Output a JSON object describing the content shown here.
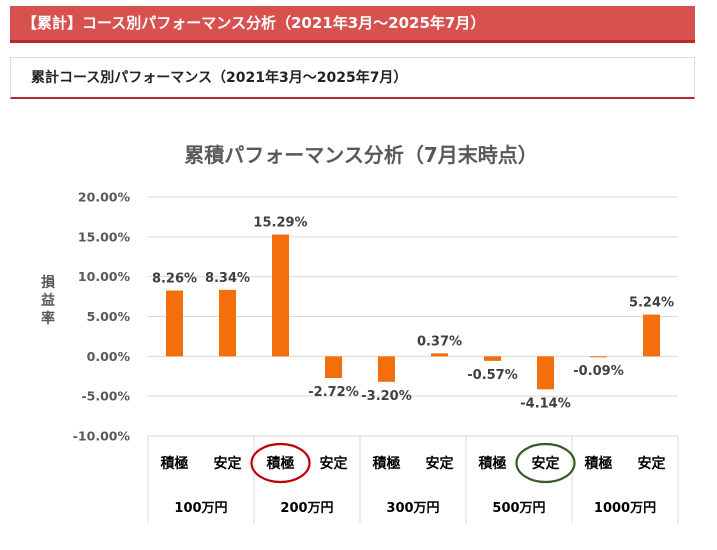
{
  "header": {
    "banner_title": "【累計】コース別パフォーマンス分析（2021年3月～2025年7月）",
    "subtitle": "累計コース別パフォーマンス（2021年3月～2025年7月）"
  },
  "chart_data": {
    "type": "bar",
    "title": "累積パフォーマンス分析（7月末時点）",
    "ylabel": "損益率",
    "xlabel": "",
    "ylim": [
      -10,
      20
    ],
    "yticks": [
      20,
      15,
      10,
      5,
      0,
      -5,
      -10
    ],
    "ytick_labels": [
      "20.00%",
      "15.00%",
      "10.00%",
      "5.00%",
      "0.00%",
      "-5.00%",
      "-10.00%"
    ],
    "grid": true,
    "bar_color": "#f26f0c",
    "categories": [
      "積極",
      "安定",
      "積極",
      "安定",
      "積極",
      "安定",
      "積極",
      "安定",
      "積極",
      "安定"
    ],
    "groups": [
      "100万円",
      "200万円",
      "300万円",
      "500万円",
      "1000万円"
    ],
    "values": [
      8.26,
      8.34,
      15.29,
      -2.72,
      -3.2,
      0.37,
      -0.57,
      -4.14,
      -0.09,
      5.24
    ],
    "value_labels": [
      "8.26%",
      "8.34%",
      "15.29%",
      "-2.72%",
      "-3.20%",
      "0.37%",
      "-0.57%",
      "-4.14%",
      "-0.09%",
      "5.24%"
    ],
    "highlights": [
      {
        "index": 2,
        "color": "#c00000"
      },
      {
        "index": 7,
        "color": "#3a5a25"
      }
    ]
  }
}
